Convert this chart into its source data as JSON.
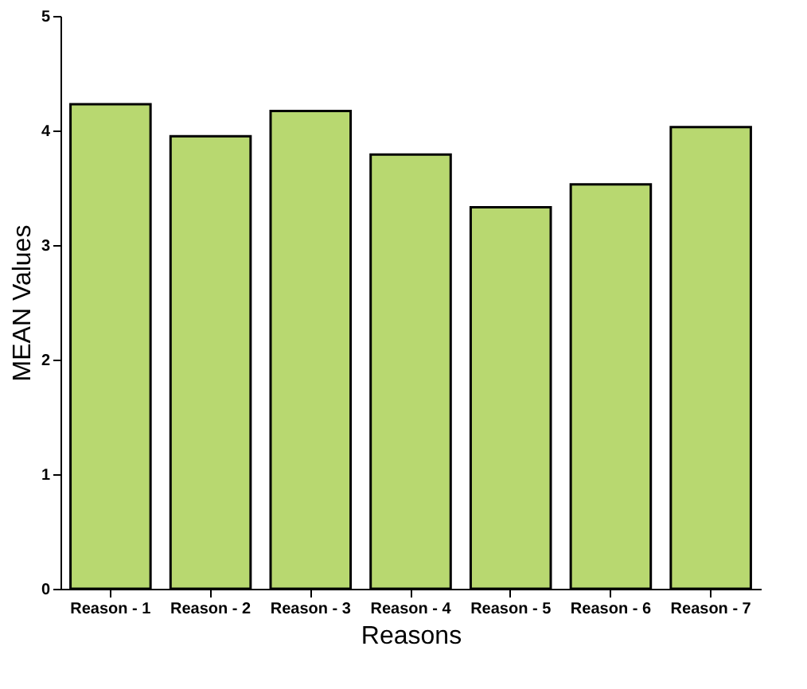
{
  "chart_data": {
    "type": "bar",
    "xlabel": "Reasons",
    "ylabel": "MEAN Values",
    "categories": [
      "Reason - 1",
      "Reason - 2",
      "Reason - 3",
      "Reason - 4",
      "Reason - 5",
      "Reason - 6",
      "Reason - 7"
    ],
    "values": [
      4.23,
      3.95,
      4.17,
      3.79,
      3.33,
      3.53,
      4.03
    ],
    "color": "#b8d870",
    "ylim": [
      0,
      5
    ],
    "yticks": [
      0,
      1,
      2,
      3,
      4,
      5
    ],
    "grid": false
  }
}
